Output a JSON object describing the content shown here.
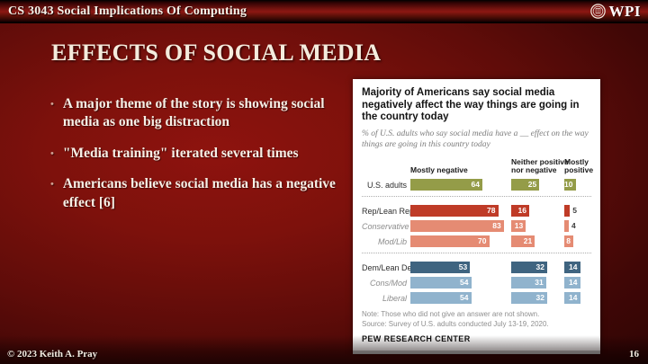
{
  "header": {
    "course_title": "CS 3043 Social Implications Of Computing",
    "logo_text": "WPI"
  },
  "slide": {
    "title": "EFFECTS OF SOCIAL MEDIA",
    "bullets": [
      "A major theme of the story is showing social media as one big distraction",
      "\"Media training\" iterated several times",
      "Americans believe social media has a negative effect [6]"
    ]
  },
  "footer": {
    "copyright": "© 2023 Keith A. Pray",
    "page_number": "16"
  },
  "colors": {
    "slide_background_red": "#7d110c",
    "bar_olive": "#949c48",
    "bar_red_dark": "#bf3b27",
    "bar_red_light": "#e58b73",
    "bar_blue_dark": "#3f6480",
    "bar_blue_light": "#90b3cd"
  },
  "chart_data": {
    "type": "bar",
    "orientation": "horizontal",
    "title": "Majority of Americans say social media negatively affect the way things are going in the country today",
    "subtitle": "% of U.S. adults who say social media have a __ effect on the way things are going in this country today",
    "columns": [
      "Mostly negative",
      "Neither positive nor negative",
      "Mostly positive"
    ],
    "xlim": [
      0,
      100
    ],
    "grid": false,
    "groups": [
      {
        "rows": [
          {
            "label": "U.S. adults",
            "italic": false,
            "color": "#949c48",
            "values": [
              64,
              25,
              10
            ]
          }
        ]
      },
      {
        "rows": [
          {
            "label": "Rep/Lean Rep",
            "italic": false,
            "color": "#bf3b27",
            "values": [
              78,
              16,
              5
            ]
          },
          {
            "label": "Conservative",
            "italic": true,
            "color": "#e58b73",
            "values": [
              83,
              13,
              4
            ]
          },
          {
            "label": "Mod/Lib",
            "italic": true,
            "color": "#e58b73",
            "values": [
              70,
              21,
              8
            ]
          }
        ]
      },
      {
        "rows": [
          {
            "label": "Dem/Lean Dem",
            "italic": false,
            "color": "#3f6480",
            "values": [
              53,
              32,
              14
            ]
          },
          {
            "label": "Cons/Mod",
            "italic": true,
            "color": "#90b3cd",
            "values": [
              54,
              31,
              14
            ]
          },
          {
            "label": "Liberal",
            "italic": true,
            "color": "#90b3cd",
            "values": [
              54,
              32,
              14
            ]
          }
        ]
      }
    ],
    "note": "Note: Those who did not give an answer are not shown.",
    "source": "Source: Survey of U.S. adults conducted July 13-19, 2020.",
    "brand": "PEW RESEARCH CENTER"
  }
}
